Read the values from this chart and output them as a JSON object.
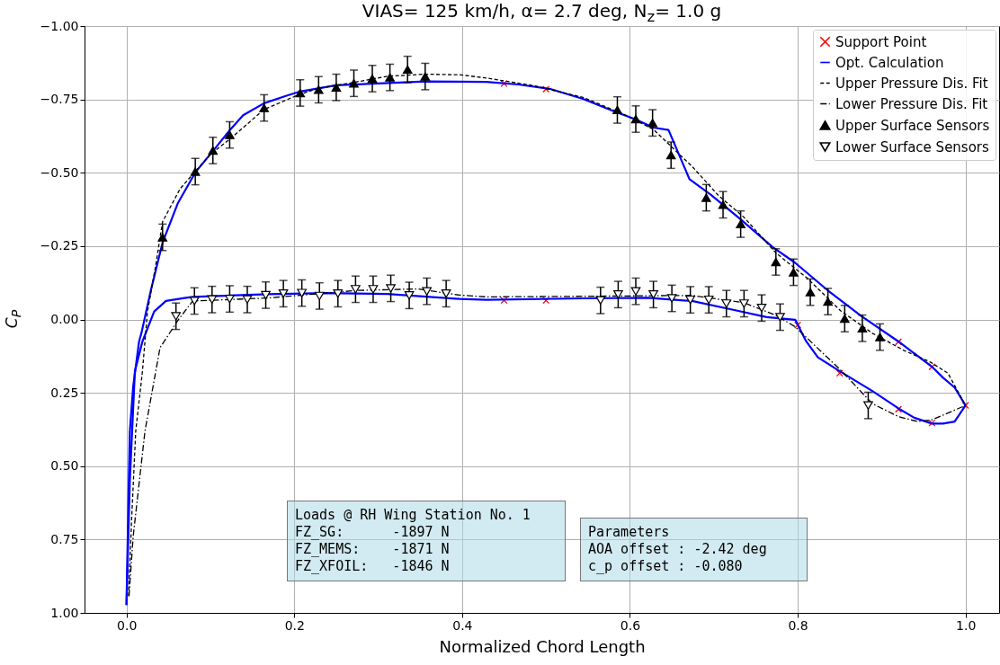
{
  "chart_data": {
    "type": "line",
    "title": "VIAS= 125 km/h,  α= 2.7 deg, N$_{z}$= 1.0 g",
    "xlabel": "Normalized Chord Length",
    "ylabel": "C$_{P}$",
    "xlim": [
      -0.05,
      1.04
    ],
    "ylim": [
      1.0,
      -1.0
    ],
    "xticks": [
      {
        "value": 0,
        "label": "0.0"
      },
      {
        "value": 0.2,
        "label": "0.2"
      },
      {
        "value": 0.4,
        "label": "0.4"
      },
      {
        "value": 0.6,
        "label": "0.6"
      },
      {
        "value": 0.8,
        "label": "0.8"
      },
      {
        "value": 1,
        "label": "1.0"
      }
    ],
    "yticks": [
      {
        "value": -1,
        "label": "−1.00"
      },
      {
        "value": -0.75,
        "label": "−0.75"
      },
      {
        "value": -0.5,
        "label": "−0.50"
      },
      {
        "value": -0.25,
        "label": "−0.25"
      },
      {
        "value": 0,
        "label": "0.00"
      },
      {
        "value": 0.25,
        "label": "0.25"
      },
      {
        "value": 0.5,
        "label": "0.50"
      },
      {
        "value": 0.75,
        "label": "0.75"
      },
      {
        "value": 1,
        "label": "1.00"
      }
    ],
    "grid": true,
    "legend": "top right",
    "series": [
      {
        "name": "Support Point",
        "type": "scatter",
        "marker": "cross",
        "color": "#ff0000",
        "x": [
          0.45,
          0.5,
          0.45,
          0.5,
          0.8,
          0.85,
          0.92,
          0.96,
          0.92,
          0.96,
          1.0
        ],
        "values": [
          -0.804,
          -0.785,
          -0.065,
          -0.065,
          0.019,
          0.183,
          0.076,
          0.161,
          0.306,
          0.353,
          0.293
        ]
      },
      {
        "name": "Opt. Calculation",
        "type": "line",
        "line_style": "solid",
        "color": "#0000ff",
        "x": [
          0.0,
          0.0025,
          0.004,
          0.008,
          0.015,
          0.018,
          0.029,
          0.043,
          0.061,
          0.082,
          0.103,
          0.123,
          0.139,
          0.164,
          0.19,
          0.207,
          0.25,
          0.356,
          0.429,
          0.467,
          0.506,
          0.544,
          0.582,
          0.606,
          0.628,
          0.646,
          0.671,
          0.697,
          0.732,
          0.77,
          0.797,
          0.835,
          0.876,
          0.92,
          0.96,
          0.973,
          0.987,
          1.0
        ],
        "values": [
          0.973,
          0.586,
          0.381,
          0.228,
          0.075,
          0.044,
          -0.099,
          -0.262,
          -0.395,
          -0.501,
          -0.574,
          -0.645,
          -0.696,
          -0.737,
          -0.762,
          -0.777,
          -0.798,
          -0.811,
          -0.81,
          -0.801,
          -0.785,
          -0.752,
          -0.708,
          -0.683,
          -0.654,
          -0.646,
          -0.478,
          -0.424,
          -0.341,
          -0.247,
          -0.193,
          -0.101,
          -0.011,
          0.075,
          0.161,
          0.198,
          0.232,
          0.293
        ]
      },
      {
        "type": "line",
        "line_style": "solid",
        "color": "#0000ff",
        "x": [
          0.0,
          0.004,
          0.01,
          0.019,
          0.033,
          0.047,
          0.069,
          0.079,
          0.168,
          0.239,
          0.311,
          0.397,
          0.429,
          0.544,
          0.621,
          0.674,
          0.728,
          0.763,
          0.797,
          0.81,
          0.824,
          0.851,
          0.889,
          0.92,
          0.939,
          0.96,
          0.973,
          0.987,
          1.0
        ],
        "values": [
          0.973,
          0.55,
          0.177,
          0.075,
          -0.027,
          -0.063,
          -0.073,
          -0.077,
          -0.086,
          -0.09,
          -0.087,
          -0.07,
          -0.067,
          -0.072,
          -0.074,
          -0.063,
          -0.03,
          -0.008,
          0.001,
          0.074,
          0.129,
          0.178,
          0.244,
          0.303,
          0.335,
          0.355,
          0.355,
          0.348,
          0.293
        ]
      },
      {
        "name": "Upper Pressure Dis. Fit",
        "type": "line",
        "line_style": "dashed",
        "color": "#000000",
        "x": [
          0.0025,
          0.006,
          0.011,
          0.019,
          0.025,
          0.034,
          0.043,
          0.064,
          0.1,
          0.125,
          0.164,
          0.207,
          0.229,
          0.271,
          0.311,
          0.356,
          0.397,
          0.429,
          0.487,
          0.544,
          0.59,
          0.628,
          0.648,
          0.674,
          0.705,
          0.736,
          0.774,
          0.812,
          0.851,
          0.889,
          0.927,
          0.958,
          0.979,
          1.0
        ],
        "values": [
          0.943,
          0.688,
          0.381,
          0.177,
          -0.027,
          -0.17,
          -0.333,
          -0.446,
          -0.563,
          -0.619,
          -0.716,
          -0.768,
          -0.788,
          -0.808,
          -0.829,
          -0.836,
          -0.834,
          -0.823,
          -0.796,
          -0.757,
          -0.703,
          -0.648,
          -0.593,
          -0.522,
          -0.424,
          -0.348,
          -0.227,
          -0.139,
          -0.03,
          0.047,
          0.106,
          0.145,
          0.183,
          0.293
        ]
      },
      {
        "name": "Lower Pressure Dis. Fit",
        "type": "line",
        "line_style": "dashdot",
        "color": "#000000",
        "x": [
          0.003,
          0.008,
          0.022,
          0.04,
          0.046,
          0.061,
          0.079,
          0.168,
          0.275,
          0.347,
          0.397,
          0.429,
          0.544,
          0.674,
          0.736,
          0.774,
          0.797,
          0.851,
          0.889,
          0.92,
          0.943,
          0.96,
          1.0
        ],
        "values": [
          0.943,
          0.739,
          0.381,
          0.096,
          0.07,
          0.004,
          -0.063,
          -0.073,
          -0.099,
          -0.104,
          -0.083,
          -0.077,
          -0.079,
          -0.082,
          -0.057,
          -0.014,
          0.025,
          0.172,
          0.287,
          0.331,
          0.348,
          0.342,
          0.293
        ]
      },
      {
        "name": "Upper Surface Sensors",
        "type": "scatter",
        "marker": "triangle",
        "color": "#000000",
        "x": [
          0.043,
          0.082,
          0.103,
          0.123,
          0.164,
          0.207,
          0.229,
          0.25,
          0.271,
          0.293,
          0.314,
          0.335,
          0.356,
          0.585,
          0.607,
          0.627,
          0.649,
          0.691,
          0.711,
          0.732,
          0.774,
          0.795,
          0.815,
          0.836,
          0.856,
          0.877,
          0.898
        ],
        "values": [
          -0.28,
          -0.504,
          -0.576,
          -0.629,
          -0.721,
          -0.772,
          -0.783,
          -0.791,
          -0.805,
          -0.821,
          -0.825,
          -0.852,
          -0.828,
          -0.714,
          -0.683,
          -0.67,
          -0.56,
          -0.415,
          -0.391,
          -0.325,
          -0.196,
          -0.161,
          -0.093,
          -0.061,
          -0.003,
          0.03,
          0.06
        ],
        "errors": [
          0.045,
          0.045,
          0.045,
          0.045,
          0.045,
          0.045,
          0.045,
          0.045,
          0.045,
          0.045,
          0.045,
          0.045,
          0.045,
          0.045,
          0.045,
          0.045,
          0.045,
          0.045,
          0.045,
          0.045,
          0.045,
          0.045,
          0.045,
          0.045,
          0.045,
          0.045,
          0.045
        ]
      },
      {
        "name": "Lower Surface Sensors",
        "type": "scatter",
        "marker": "triangle-down",
        "color": "#000000",
        "x": [
          0.059,
          0.081,
          0.102,
          0.123,
          0.144,
          0.166,
          0.187,
          0.209,
          0.23,
          0.252,
          0.273,
          0.294,
          0.315,
          0.337,
          0.358,
          0.381,
          0.565,
          0.586,
          0.607,
          0.628,
          0.65,
          0.672,
          0.694,
          0.715,
          0.736,
          0.757,
          0.779,
          0.884
        ],
        "values": [
          -0.011,
          -0.063,
          -0.068,
          -0.07,
          -0.068,
          -0.083,
          -0.088,
          -0.09,
          -0.08,
          -0.088,
          -0.103,
          -0.103,
          -0.106,
          -0.082,
          -0.096,
          -0.088,
          -0.065,
          -0.085,
          -0.096,
          -0.085,
          -0.072,
          -0.067,
          -0.067,
          -0.054,
          -0.054,
          -0.039,
          -0.008,
          0.293
        ],
        "errors": [
          0.045,
          0.045,
          0.045,
          0.045,
          0.045,
          0.045,
          0.045,
          0.045,
          0.045,
          0.045,
          0.045,
          0.045,
          0.045,
          0.045,
          0.045,
          0.045,
          0.045,
          0.045,
          0.045,
          0.045,
          0.045,
          0.045,
          0.045,
          0.045,
          0.045,
          0.045,
          0.045,
          0.045
        ]
      }
    ],
    "annotations": [
      "Loads @ RH Wing Station No. 1\nFZ_SG:      -1897 N\nFZ_MEMS:    -1871 N\nFZ_XFOIL:   -1846 N",
      "Parameters\nAOA offset : -2.42 deg\nc_p offset : -0.080"
    ]
  }
}
